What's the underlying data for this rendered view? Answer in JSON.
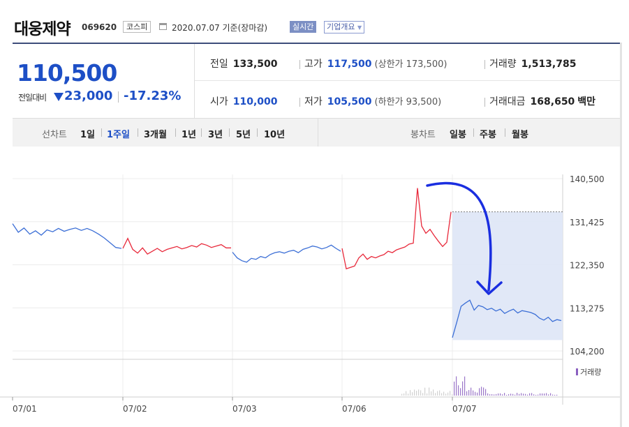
{
  "header": {
    "company": "대웅제약",
    "code": "069620",
    "market": "코스피",
    "date": "2020.07.07 기준(장마감)",
    "realtime": "실시간",
    "overview": "기업개요"
  },
  "quote": {
    "price": "110,500",
    "change_label": "전일대비",
    "change": "23,000",
    "change_rate": "-17.23%",
    "prev_label": "전일",
    "prev": "133,500",
    "high_label": "고가",
    "high": "117,500",
    "high_limit": "(상한가 173,500)",
    "volume_label": "거래량",
    "volume": "1,513,785",
    "open_label": "시가",
    "open": "110,000",
    "low_label": "저가",
    "low": "105,500",
    "low_limit": "(하한가 93,500)",
    "amount_label": "거래대금",
    "amount": "168,650",
    "amount_unit": "백만"
  },
  "tabs": {
    "line_label": "선차트",
    "line": [
      "1일",
      "1주일",
      "3개월",
      "1년",
      "3년",
      "5년",
      "10년"
    ],
    "selected": "1주일",
    "candle_label": "봉차트",
    "candle": [
      "일봉",
      "주봉",
      "월봉"
    ]
  },
  "colors": {
    "up": "#e8293b",
    "down": "#3c6fd6",
    "accent": "#1d4fc6",
    "volume": "#8a5fc0",
    "arrow": "#1a2ee0",
    "highlight": "#dfe7f7"
  },
  "chart_data": {
    "type": "line",
    "y_ticks": [
      140500,
      131425,
      122350,
      113275,
      104200
    ],
    "y_tick_labels": [
      "140,500",
      "131,425",
      "122,350",
      "113,275",
      "104,200"
    ],
    "ylim": [
      104200,
      140500
    ],
    "x_ticks": [
      "07/01",
      "07/02",
      "07/03",
      "07/06",
      "07/07"
    ],
    "prev_close": 133500,
    "volume_label": "거래량",
    "series": [
      {
        "segment": "07/01",
        "color": "down",
        "values": [
          131000,
          129200,
          130100,
          128800,
          129500,
          128600,
          129700,
          129300,
          130000,
          129400,
          129800,
          130100,
          129600,
          130000,
          129500,
          128800,
          128000,
          127000,
          126000,
          125800
        ]
      },
      {
        "segment": "07/02",
        "color": "up",
        "values": [
          125800,
          127900,
          125600,
          124800,
          125900,
          124600,
          125200,
          125800,
          125100,
          125600,
          125900,
          126200,
          125700,
          126000,
          126400,
          126100,
          126800,
          126500,
          126000,
          126300,
          126600,
          125900,
          125900
        ]
      },
      {
        "segment": "07/03",
        "color": "down",
        "values": [
          125000,
          123800,
          123200,
          122900,
          123700,
          123500,
          124100,
          123800,
          124500,
          124900,
          125100,
          124800,
          125200,
          125400,
          124900,
          125600,
          125900,
          126300,
          126100,
          125700,
          126000,
          126500,
          125800,
          125200
        ]
      },
      {
        "segment": "07/06",
        "color": "up",
        "values": [
          125800,
          121500,
          121800,
          122100,
          123800,
          124600,
          123500,
          124100,
          123800,
          124200,
          124500,
          125200,
          124900,
          125500,
          125800,
          126100,
          126700,
          126900,
          138500,
          130500,
          129000,
          129800,
          128500,
          127300,
          126200,
          127100,
          133500
        ]
      },
      {
        "segment": "07/07",
        "color": "down",
        "values": [
          107000,
          110200,
          113600,
          114300,
          114900,
          112800,
          113800,
          113500,
          112900,
          113200,
          112600,
          113000,
          112100,
          112600,
          113000,
          112200,
          112700,
          112500,
          112300,
          111900,
          111100,
          110700,
          111300,
          110400,
          110800,
          110600
        ]
      }
    ]
  }
}
